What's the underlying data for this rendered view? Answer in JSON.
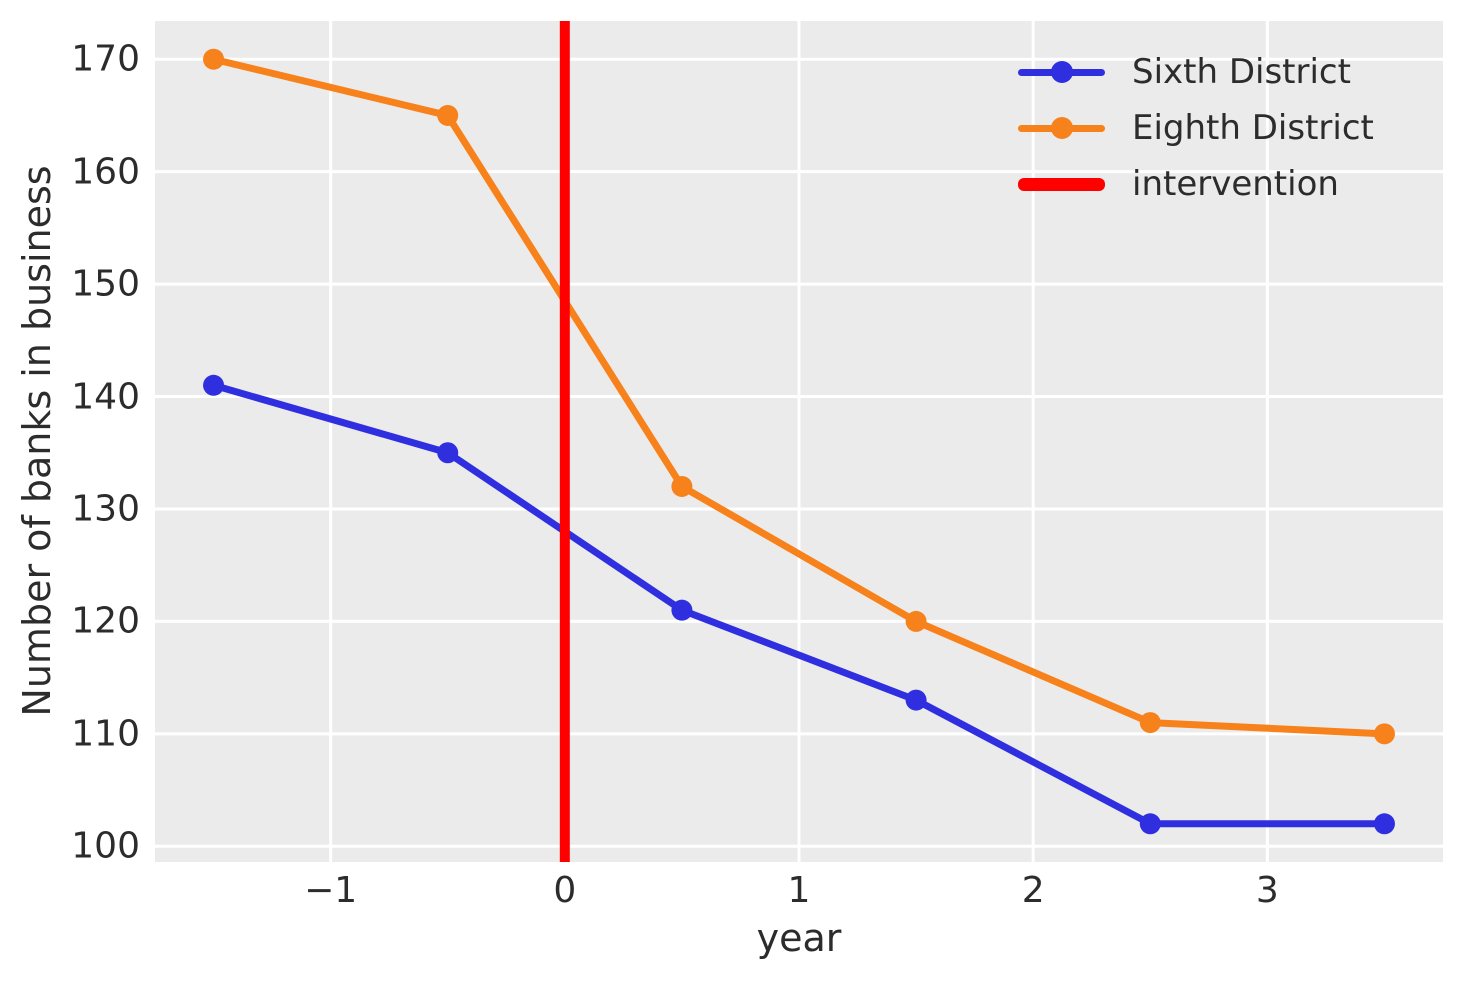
{
  "chart_data": {
    "type": "line",
    "title": "",
    "xlabel": "year",
    "ylabel": "Number of banks in business",
    "x": [
      -1.5,
      -0.5,
      0.5,
      1.5,
      2.5,
      3.5
    ],
    "series": [
      {
        "name": "Sixth District",
        "color": "#2f2fe0",
        "values": [
          141,
          135,
          121,
          113,
          102,
          102
        ]
      },
      {
        "name": "Eighth District",
        "color": "#f7811b",
        "values": [
          170,
          165,
          132,
          120,
          111,
          110
        ]
      }
    ],
    "vline": {
      "label": "intervention",
      "x": 0,
      "color": "#ff0000"
    },
    "xlim": [
      -1.75,
      3.75
    ],
    "ylim": [
      98.6,
      173.4
    ],
    "xticks": [
      -1,
      0,
      1,
      2,
      3
    ],
    "xtick_labels": [
      "−1",
      "0",
      "1",
      "2",
      "3"
    ],
    "yticks": [
      100,
      110,
      120,
      130,
      140,
      150,
      160,
      170
    ],
    "ytick_labels": [
      "100",
      "110",
      "120",
      "130",
      "140",
      "150",
      "160",
      "170"
    ],
    "grid": true,
    "legend_position": "upper right",
    "legend_entries": [
      "Sixth District",
      "Eighth District",
      "intervention"
    ],
    "plot_background": "#ebebeb",
    "grid_color": "#ffffff",
    "text_color": "#2c2c2c"
  }
}
